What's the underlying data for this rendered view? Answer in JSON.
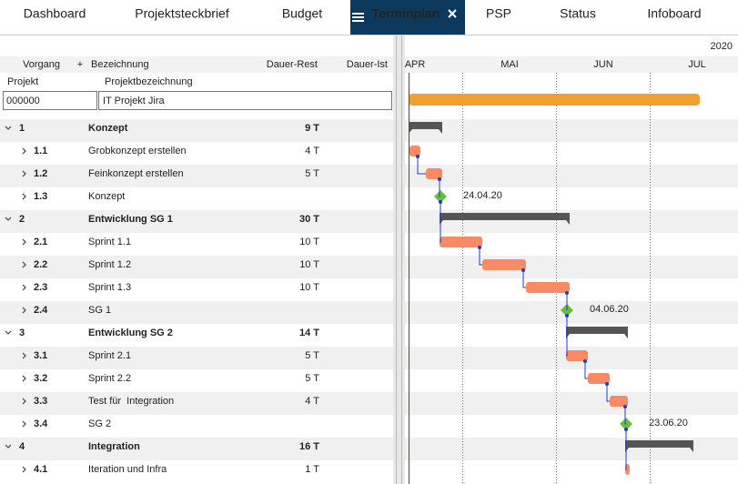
{
  "tabs": [
    "Dashboard",
    "Projektsteckbrief",
    "Budget",
    "Terminplan",
    "PSP",
    "Status",
    "Infoboard"
  ],
  "header": {
    "year": "2020",
    "columns": [
      "Vorgang",
      "+",
      "Bezeichnung",
      "Dauer-Rest",
      "Dauer-Ist"
    ],
    "months": [
      "APR",
      "MAI",
      "JUN",
      "JUL"
    ]
  },
  "project": {
    "label": "Projekt",
    "name_label": "Projektbezeichnung",
    "id": "000000",
    "name": "IT Projekt Jira"
  },
  "tasks": [
    {
      "id": "1",
      "name": "Konzept",
      "duration": "9 T"
    },
    {
      "id": "1.1",
      "name": "Grobkonzept erstellen",
      "duration": "4 T"
    },
    {
      "id": "1.2",
      "name": "Feinkonzept erstellen",
      "duration": "5 T"
    },
    {
      "id": "1.3",
      "name": "Konzept",
      "date": "24.04.20"
    },
    {
      "id": "2",
      "name": "Entwicklung SG 1",
      "duration": "30 T"
    },
    {
      "id": "2.1",
      "name": "Sprint 1.1",
      "duration": "10 T"
    },
    {
      "id": "2.2",
      "name": "Sprint 1.2",
      "duration": "10 T"
    },
    {
      "id": "2.3",
      "name": "Sprint 1.3",
      "duration": "10 T"
    },
    {
      "id": "2.4",
      "name": "SG 1",
      "date": "04.06.20"
    },
    {
      "id": "3",
      "name": "Entwicklung SG 2",
      "duration": "14 T"
    },
    {
      "id": "3.1",
      "name": "Sprint 2.1",
      "duration": "5 T"
    },
    {
      "id": "3.2",
      "name": "Sprint 2.2",
      "duration": "5 T"
    },
    {
      "id": "3.3",
      "name": "Test für  Integration",
      "duration": "4 T"
    },
    {
      "id": "3.4",
      "name": "SG 2",
      "date": "23.06.20"
    },
    {
      "id": "4",
      "name": "Integration",
      "duration": "16 T"
    },
    {
      "id": "4.1",
      "name": "Iteration und Infra",
      "duration": "1 T"
    }
  ]
}
